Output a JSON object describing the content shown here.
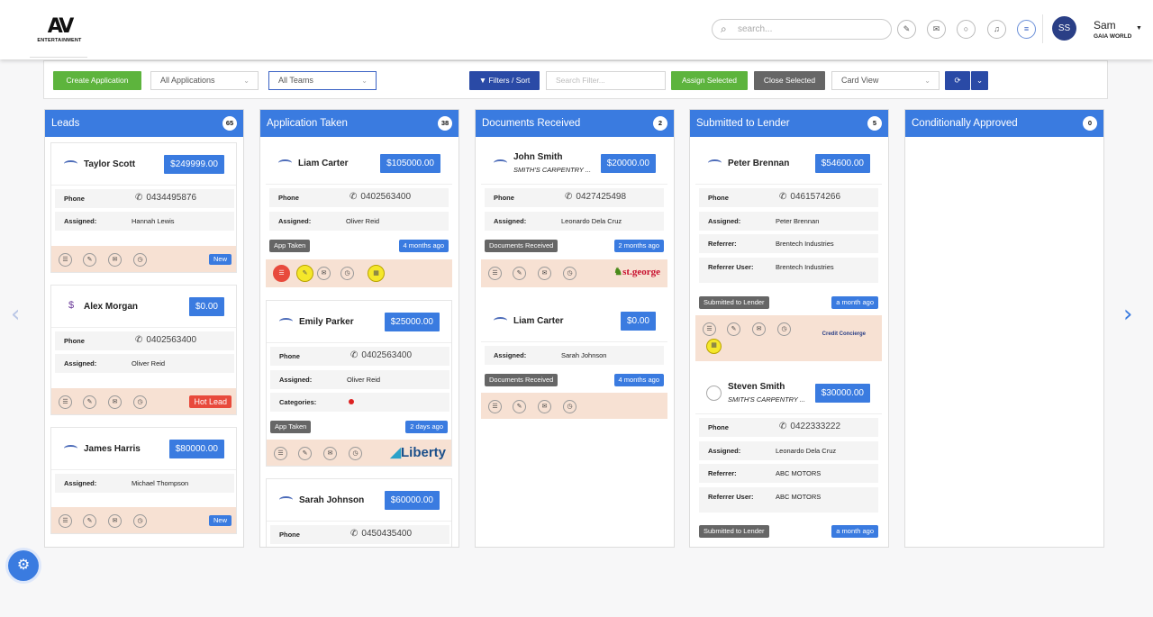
{
  "brand": {
    "mark": "AV",
    "text": "ENTERTAINMENT"
  },
  "header": {
    "search_placeholder": "search...",
    "user_initials": "SS",
    "user_name": "Sam",
    "user_org": "GAIA WORLD"
  },
  "toolbar": {
    "create_label": "Create Application",
    "apps_dd": "All Applications",
    "teams_dd": "All Teams",
    "filters_label": "Filters / Sort",
    "filter_placeholder": "Search Filter...",
    "assign_label": "Assign Selected",
    "close_label": "Close Selected",
    "view_dd": "Card View"
  },
  "columns": [
    {
      "title": "Leads",
      "count": "65"
    },
    {
      "title": "Application Taken",
      "count": "38"
    },
    {
      "title": "Documents Received",
      "count": "2"
    },
    {
      "title": "Submitted to Lender",
      "count": "5"
    },
    {
      "title": "Conditionally Approved",
      "count": "0"
    }
  ],
  "labels": {
    "phone": "Phone",
    "assigned": "Assigned:",
    "categories": "Categories:",
    "referrer": "Referrer:",
    "referrer_user": "Referrer User:"
  },
  "cards": {
    "leads": [
      {
        "name": "Taylor Scott",
        "amount": "$249999.00",
        "phone": "0434495876",
        "assigned": "Hannah Lewis",
        "tag": "New"
      },
      {
        "name": "Alex Morgan",
        "amount": "$0.00",
        "phone": "0402563400",
        "assigned": "Oliver Reid",
        "tag": "Hot Lead"
      },
      {
        "name": "James Harris",
        "amount": "$80000.00",
        "assigned": "Michael Thompson",
        "tag": "New"
      }
    ],
    "app": [
      {
        "name": "Liam Carter",
        "amount": "$105000.00",
        "phone": "0402563400",
        "assigned": "Oliver Reid",
        "status": "App Taken",
        "time": "4 months ago"
      },
      {
        "name": "Emily Parker",
        "amount": "$25000.00",
        "phone": "0402563400",
        "assigned": "Oliver Reid",
        "status": "App Taken",
        "time": "2 days ago",
        "lender": "Liberty"
      },
      {
        "name": "Sarah Johnson",
        "amount": "$60000.00",
        "phone": "0450435400"
      }
    ],
    "docs": [
      {
        "name": "John Smith",
        "company": "SMITH'S CARPENTRY ...",
        "amount": "$20000.00",
        "phone": "0427425498",
        "assigned": "Leonardo Dela Cruz",
        "status": "Documents Received",
        "time": "2 months ago",
        "lender": "st.george"
      },
      {
        "name": "Liam Carter",
        "amount": "$0.00",
        "assigned": "Sarah Johnson",
        "status": "Documents Received",
        "time": "4 months ago"
      }
    ],
    "submitted": [
      {
        "name": "Peter Brennan",
        "amount": "$54600.00",
        "phone": "0461574266",
        "assigned": "Peter Brennan",
        "referrer": "Brentech Industries",
        "referrer_user": "Brentech Industries",
        "status": "Submitted to Lender",
        "time": "a month ago",
        "lender": "Credit Concierge"
      },
      {
        "name": "Steven Smith",
        "company": "SMITH'S CARPENTRY ...",
        "amount": "$30000.00",
        "phone": "0422333222",
        "assigned": "Leonardo Dela Cruz",
        "referrer": "ABC MOTORS",
        "referrer_user": "ABC MOTORS",
        "status": "Submitted to Lender",
        "time": "a month ago"
      }
    ]
  },
  "colors": {
    "primary": "#3a7be0",
    "green": "#5db43d",
    "navy": "#2a4aa6",
    "actions_bg": "#f7e1d3",
    "hot": "#e84a3c"
  }
}
